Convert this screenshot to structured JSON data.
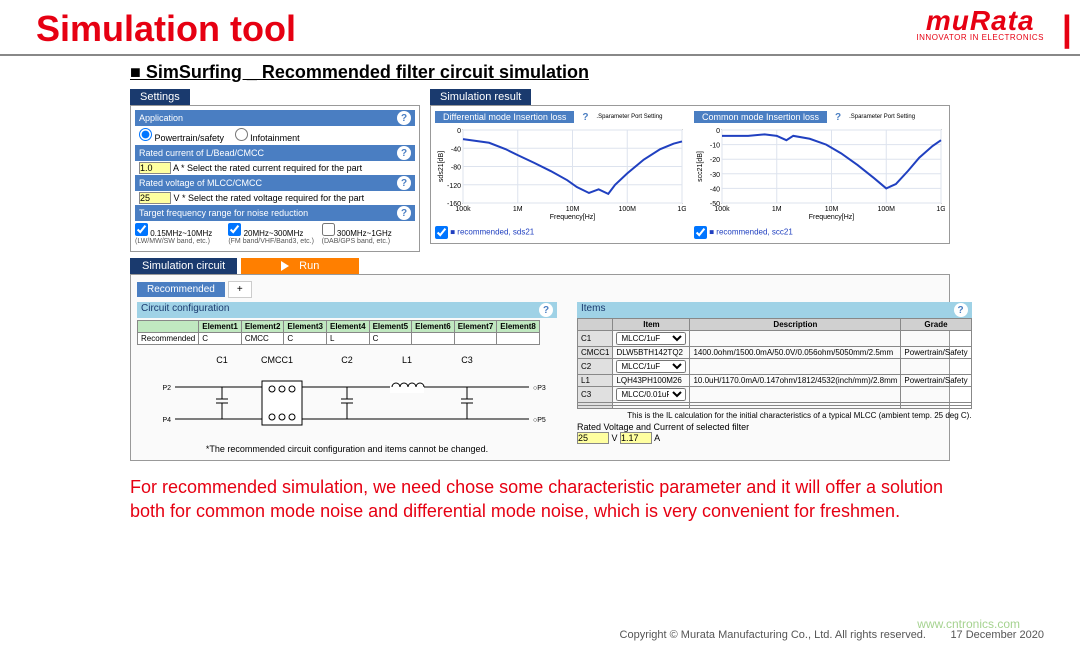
{
  "header": {
    "title": "Simulation tool",
    "logo_main": "muRata",
    "logo_sub": "INNOVATOR IN ELECTRONICS",
    "logo_bar": "|"
  },
  "section": {
    "title": "■ SimSurfing _ Recommended filter circuit simulation"
  },
  "settings": {
    "tab": "Settings",
    "app_label": "Application",
    "app_opt1": "Powertrain/safety",
    "app_opt2": "Infotainment",
    "rated_current_label": "Rated current of L/Bead/CMCC",
    "rated_current_val": "1.0",
    "rated_current_unit": "A  * Select the rated current required for the part",
    "rated_voltage_label": "Rated voltage of MLCC/CMCC",
    "rated_voltage_val": "25",
    "rated_voltage_unit": "V  * Select the rated voltage required for the part",
    "target_label": "Target frequency range for noise reduction",
    "cb1": "0.15MHz~10MHz",
    "cb1_sub": "(LW/MW/SW band, etc.)",
    "cb2": "20MHz~300MHz",
    "cb2_sub": "(FM band/VHF/Band3, etc.)",
    "cb3": "300MHz~1GHz",
    "cb3_sub": "(DAB/GPS band, etc.)"
  },
  "result": {
    "tab": "Simulation result",
    "chart1": {
      "title": "Differential mode Insertion loss",
      "side": ".Sparameter Port Setting",
      "legend": "recommended, sds21",
      "ylabel": "sds21[dB]",
      "xlabel": "Frequency[Hz]",
      "xlim": [
        100000,
        1000000000
      ],
      "ylim": [
        -160,
        0
      ],
      "ytick_step": 40,
      "xticks_labels": [
        "100k",
        "1M",
        "10M",
        "100M",
        "1G"
      ],
      "line_color": "#2040c0",
      "bg": "#ffffff",
      "grid": "#dde3ee",
      "line_width": 2,
      "points": [
        [
          100000,
          -20
        ],
        [
          300000,
          -28
        ],
        [
          600000,
          -42
        ],
        [
          1000000,
          -55
        ],
        [
          2000000,
          -72
        ],
        [
          4000000,
          -90
        ],
        [
          8000000,
          -110
        ],
        [
          12000000,
          -125
        ],
        [
          20000000,
          -138
        ],
        [
          30000000,
          -130
        ],
        [
          45000000,
          -140
        ],
        [
          60000000,
          -120
        ],
        [
          100000000,
          -95
        ],
        [
          200000000,
          -65
        ],
        [
          400000000,
          -42
        ],
        [
          700000000,
          -30
        ],
        [
          1000000000,
          -25
        ]
      ]
    },
    "chart2": {
      "title": "Common mode Insertion loss",
      "side": ".Sparameter Port Setting",
      "legend": "recommended, scc21",
      "ylabel": "scc21[dB]",
      "xlabel": "Frequency[Hz]",
      "xlim": [
        100000,
        1000000000
      ],
      "ylim": [
        -50,
        0
      ],
      "ytick_step": 10,
      "xticks_labels": [
        "100k",
        "1M",
        "10M",
        "100M",
        "1G"
      ],
      "line_color": "#2040c0",
      "bg": "#ffffff",
      "grid": "#dde3ee",
      "line_width": 2,
      "points": [
        [
          100000,
          -4
        ],
        [
          300000,
          -4
        ],
        [
          600000,
          -3
        ],
        [
          1000000,
          -4
        ],
        [
          1500000,
          -7
        ],
        [
          2000000,
          -4
        ],
        [
          4000000,
          -6
        ],
        [
          8000000,
          -10
        ],
        [
          15000000,
          -16
        ],
        [
          30000000,
          -24
        ],
        [
          60000000,
          -33
        ],
        [
          100000000,
          -40
        ],
        [
          150000000,
          -37
        ],
        [
          250000000,
          -28
        ],
        [
          400000000,
          -19
        ],
        [
          700000000,
          -11
        ],
        [
          1000000000,
          -7
        ]
      ]
    }
  },
  "sim": {
    "tab": "Simulation circuit",
    "run": "Run",
    "rec_tab": "Recommended",
    "plus": "+",
    "circuit_header": "Circuit configuration",
    "elements_header": [
      "",
      "Element1",
      "Element2",
      "Element3",
      "Element4",
      "Element5",
      "Element6",
      "Element7",
      "Element8"
    ],
    "elements_row_label": "Recommended",
    "elements_row": [
      "C",
      "CMCC",
      "C",
      "L",
      "C",
      "",
      "",
      ""
    ],
    "labels": [
      "C1",
      "CMCC1",
      "C2",
      "L1",
      "C3"
    ],
    "note": "*The recommended circuit configuration and items cannot be changed.",
    "items_header": "Items",
    "items_cols": [
      "",
      "Item",
      "Description",
      "Grade"
    ],
    "items_rows": [
      {
        "k": "C1",
        "item": "MLCC/1uF",
        "desc": "",
        "grade": ""
      },
      {
        "k": "CMCC1",
        "item": "DLW5BTH142TQ2",
        "desc": "1400.0ohm/1500.0mA/50.0V/0.056ohm/5050mm/2.5mm",
        "grade": "Powertrain/Safety"
      },
      {
        "k": "C2",
        "item": "MLCC/1uF",
        "desc": "",
        "grade": ""
      },
      {
        "k": "L1",
        "item": "LQH43PH100M26",
        "desc": "10.0uH/1170.0mA/0.147ohm/1812/4532(inch/mm)/2.8mm",
        "grade": "Powertrain/Safety"
      },
      {
        "k": "C3",
        "item": "MLCC/0.01uF",
        "desc": "",
        "grade": ""
      }
    ],
    "items_note": "This is the IL calculation for the initial characteristics of a typical MLCC (ambient temp. 25 deg C).",
    "rated_label": "Rated Voltage and Current of selected filter",
    "rated_v": "25",
    "rated_v_u": "V",
    "rated_a": "1.17",
    "rated_a_u": "A"
  },
  "redtext": "For recommended simulation, we need chose some characteristic parameter and it will offer a solution both for common mode noise and differential mode noise, which is very convenient for freshmen.",
  "footer": {
    "copyright": "Copyright © Murata Manufacturing Co., Ltd. All rights reserved.",
    "date": "17 December 2020",
    "watermark": "www.cntronics.com"
  }
}
